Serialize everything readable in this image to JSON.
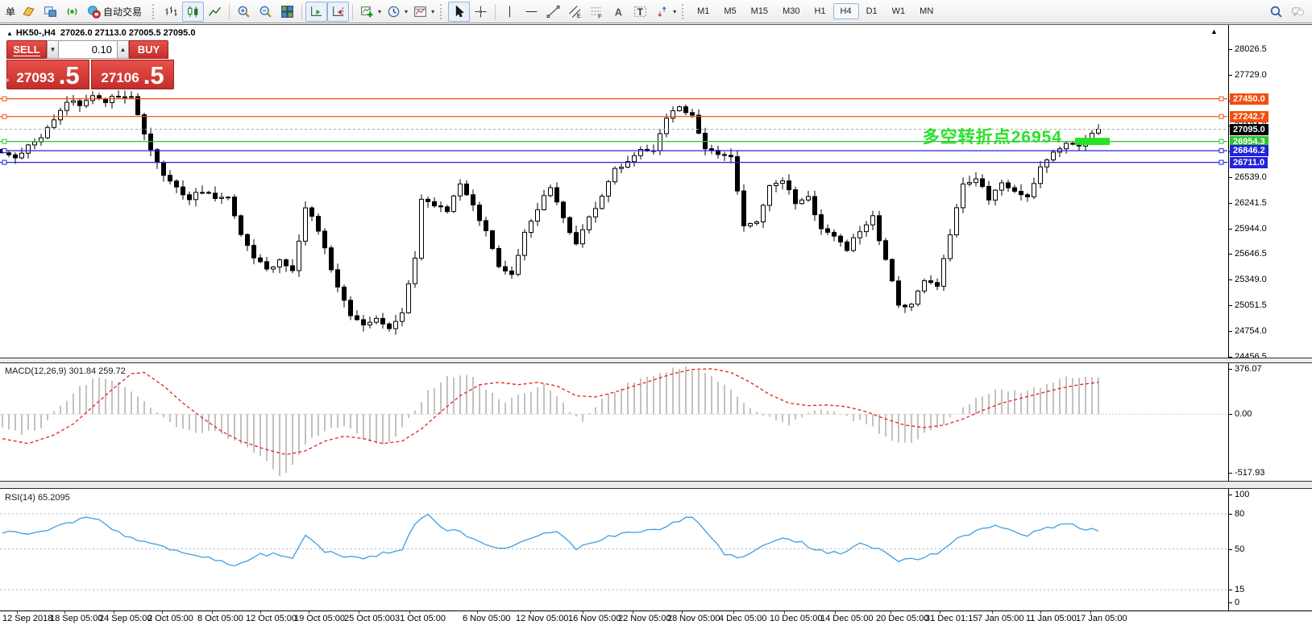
{
  "ui": {
    "toolbar": {
      "menu_clip": "单",
      "autotrade_label": "自动交易",
      "timeframes": [
        "M1",
        "M5",
        "M15",
        "M30",
        "H1",
        "H4",
        "D1",
        "W1",
        "MN"
      ],
      "active_timeframe": "H4",
      "items": [
        {
          "type": "text",
          "name": "menu-clip"
        },
        {
          "type": "icon",
          "name": "new-order-icon"
        },
        {
          "type": "icon",
          "name": "market-watch-icon"
        },
        {
          "type": "icon",
          "name": "signals-icon"
        },
        {
          "type": "icon-label",
          "name": "autotrade-button",
          "icon": "autotrade-icon"
        },
        {
          "type": "grip"
        },
        {
          "type": "icon",
          "name": "bars-chart-icon"
        },
        {
          "type": "icon",
          "name": "candles-chart-icon",
          "active": true
        },
        {
          "type": "icon",
          "name": "line-chart-icon"
        },
        {
          "type": "sep"
        },
        {
          "type": "icon",
          "name": "zoom-in-icon"
        },
        {
          "type": "icon",
          "name": "zoom-out-icon"
        },
        {
          "type": "icon",
          "name": "tile-windows-icon"
        },
        {
          "type": "sep"
        },
        {
          "type": "icon",
          "name": "auto-scroll-icon",
          "active": true
        },
        {
          "type": "icon",
          "name": "chart-shift-icon",
          "active": true
        },
        {
          "type": "sep"
        },
        {
          "type": "icon",
          "name": "indicators-icon",
          "dd": true
        },
        {
          "type": "icon",
          "name": "periods-icon",
          "dd": true
        },
        {
          "type": "icon",
          "name": "templates-icon",
          "dd": true
        },
        {
          "type": "grip"
        },
        {
          "type": "icon",
          "name": "cursor-icon",
          "active": true
        },
        {
          "type": "icon",
          "name": "crosshair-icon"
        },
        {
          "type": "sep"
        },
        {
          "type": "icon",
          "name": "vertical-line-icon"
        },
        {
          "type": "icon",
          "name": "horizontal-line-icon"
        },
        {
          "type": "icon",
          "name": "trend-line-icon"
        },
        {
          "type": "icon",
          "name": "channel-icon"
        },
        {
          "type": "icon",
          "name": "fibonacci-icon"
        },
        {
          "type": "icon",
          "name": "text-icon"
        },
        {
          "type": "icon",
          "name": "text-label-icon"
        },
        {
          "type": "icon",
          "name": "arrows-icon",
          "dd": true
        },
        {
          "type": "grip"
        },
        {
          "type": "timeframes"
        },
        {
          "type": "spacer"
        },
        {
          "type": "icon",
          "name": "search-icon"
        },
        {
          "type": "icon",
          "name": "chat-icon"
        }
      ]
    },
    "trade": {
      "sell": "SELL",
      "buy": "BUY",
      "volume": "0.10",
      "bid_int": "27093",
      "bid_frac": ".5",
      "ask_int": "27106",
      "ask_frac": ".5"
    }
  },
  "chart": {
    "symbol_period": "HK50-,H4",
    "ohlc": "27026.0 27113.0 27005.5 27095.0",
    "annotation_text": "多空转折点26954",
    "annotation_color": "#2be02b"
  },
  "chart_data": {
    "type": "candlestick",
    "symbol": "HK50-",
    "period": "H4",
    "price_axis": {
      "ticks": [
        28026.5,
        27729.0,
        27431.5,
        27134.0,
        26836.5,
        26539.0,
        26241.5,
        25944.0,
        25646.5,
        25349.0,
        25051.5,
        24754.0,
        24456.5
      ],
      "range": [
        24454,
        28147
      ]
    },
    "levels": [
      {
        "price": 27450.0,
        "label": "27450.0",
        "color": "#f14e10"
      },
      {
        "price": 27242.7,
        "label": "27242.7",
        "color": "#f14e10"
      },
      {
        "price": 26954.3,
        "label": "26954.3",
        "color": "#2cc42c"
      },
      {
        "price": 26846.2,
        "label": "26846.2",
        "color": "#2323dd"
      },
      {
        "price": 26711.0,
        "label": "26711.0",
        "color": "#2323dd"
      }
    ],
    "bid": {
      "price": 27095.0,
      "label": "27095.0",
      "line_color": "#ababab",
      "label_bg": "#000000"
    },
    "highlight_zone": {
      "price": 26954.3,
      "color": "#28e228"
    },
    "candle_count": 171,
    "candle_close_path": [
      [
        0,
        26850
      ],
      [
        2,
        26780
      ],
      [
        4,
        26900
      ],
      [
        6,
        26980
      ],
      [
        8,
        27220
      ],
      [
        10,
        27420
      ],
      [
        12,
        27380
      ],
      [
        14,
        27480
      ],
      [
        16,
        27430
      ],
      [
        18,
        27490
      ],
      [
        20,
        27460
      ],
      [
        22,
        27050
      ],
      [
        23,
        26880
      ],
      [
        25,
        26550
      ],
      [
        27,
        26420
      ],
      [
        29,
        26300
      ],
      [
        31,
        26380
      ],
      [
        33,
        26280
      ],
      [
        35,
        26320
      ],
      [
        37,
        25850
      ],
      [
        39,
        25600
      ],
      [
        41,
        25480
      ],
      [
        43,
        25560
      ],
      [
        45,
        25440
      ],
      [
        47,
        26180
      ],
      [
        48,
        26100
      ],
      [
        50,
        25700
      ],
      [
        52,
        25280
      ],
      [
        54,
        24920
      ],
      [
        56,
        24800
      ],
      [
        58,
        24880
      ],
      [
        60,
        24760
      ],
      [
        62,
        24980
      ],
      [
        64,
        25600
      ],
      [
        65,
        26280
      ],
      [
        67,
        26220
      ],
      [
        69,
        26130
      ],
      [
        71,
        26480
      ],
      [
        73,
        26200
      ],
      [
        75,
        25900
      ],
      [
        77,
        25480
      ],
      [
        79,
        25430
      ],
      [
        81,
        25880
      ],
      [
        83,
        26180
      ],
      [
        85,
        26420
      ],
      [
        87,
        26080
      ],
      [
        89,
        25760
      ],
      [
        91,
        26080
      ],
      [
        93,
        26320
      ],
      [
        95,
        26620
      ],
      [
        97,
        26700
      ],
      [
        99,
        26880
      ],
      [
        101,
        26820
      ],
      [
        103,
        27240
      ],
      [
        105,
        27360
      ],
      [
        107,
        27260
      ],
      [
        109,
        26880
      ],
      [
        111,
        26820
      ],
      [
        113,
        26780
      ],
      [
        115,
        25980
      ],
      [
        117,
        26020
      ],
      [
        119,
        26420
      ],
      [
        121,
        26480
      ],
      [
        123,
        26260
      ],
      [
        125,
        26300
      ],
      [
        127,
        25950
      ],
      [
        129,
        25880
      ],
      [
        131,
        25700
      ],
      [
        133,
        25920
      ],
      [
        135,
        26080
      ],
      [
        137,
        25560
      ],
      [
        139,
        25080
      ],
      [
        141,
        25040
      ],
      [
        143,
        25340
      ],
      [
        145,
        25280
      ],
      [
        147,
        25880
      ],
      [
        149,
        26440
      ],
      [
        151,
        26520
      ],
      [
        153,
        26300
      ],
      [
        155,
        26480
      ],
      [
        157,
        26380
      ],
      [
        159,
        26300
      ],
      [
        161,
        26680
      ],
      [
        163,
        26840
      ],
      [
        165,
        26950
      ],
      [
        167,
        26890
      ],
      [
        169,
        27060
      ],
      [
        170,
        27095
      ]
    ],
    "time_axis": [
      [
        3,
        "12 Sep 2018"
      ],
      [
        62,
        "18 Sep 05:00"
      ],
      [
        123,
        "24 Sep 05:00"
      ],
      [
        183,
        "2 Oct 05:00"
      ],
      [
        245,
        "8 Oct 05:00"
      ],
      [
        305,
        "12 Oct 05:00"
      ],
      [
        365,
        "19 Oct 05:00"
      ],
      [
        427,
        "25 Oct 05:00"
      ],
      [
        490,
        "31 Oct 05:00"
      ],
      [
        574,
        "6 Nov 05:00"
      ],
      [
        640,
        "12 Nov 05:00"
      ],
      [
        705,
        "16 Nov 05:00"
      ],
      [
        767,
        "22 Nov 05:00"
      ],
      [
        828,
        "28 Nov 05:00"
      ],
      [
        892,
        "4 Dec 05:00"
      ],
      [
        955,
        "10 Dec 05:00"
      ],
      [
        1018,
        "14 Dec 05:00"
      ],
      [
        1087,
        "20 Dec 05:00"
      ],
      [
        1148,
        "31 Dec 01:15"
      ],
      [
        1213,
        "7 Jan 05:00"
      ],
      [
        1273,
        "11 Jan 05:00"
      ],
      [
        1335,
        "17 Jan 05:00"
      ]
    ],
    "macd": {
      "label": "MACD(12,26,9) 301.84 259.72",
      "axis_labels": [
        "376.07",
        "0.00",
        "-517.93"
      ],
      "range": [
        -517.93,
        376.07
      ],
      "last_main": 301.84,
      "last_signal": 259.72,
      "hist_color": "#c2c2c2",
      "signal_color": "#e02222",
      "hist_path": [
        [
          0,
          -90
        ],
        [
          3,
          -160
        ],
        [
          6,
          -110
        ],
        [
          9,
          80
        ],
        [
          12,
          220
        ],
        [
          15,
          300
        ],
        [
          18,
          280
        ],
        [
          21,
          150
        ],
        [
          24,
          20
        ],
        [
          27,
          -90
        ],
        [
          30,
          -170
        ],
        [
          33,
          -140
        ],
        [
          36,
          -220
        ],
        [
          40,
          -330
        ],
        [
          43,
          -518
        ],
        [
          45,
          -430
        ],
        [
          47,
          -250
        ],
        [
          50,
          -130
        ],
        [
          53,
          -90
        ],
        [
          56,
          -200
        ],
        [
          59,
          -260
        ],
        [
          61,
          -170
        ],
        [
          63,
          -40
        ],
        [
          66,
          180
        ],
        [
          69,
          300
        ],
        [
          72,
          330
        ],
        [
          75,
          210
        ],
        [
          78,
          100
        ],
        [
          81,
          170
        ],
        [
          84,
          230
        ],
        [
          87,
          80
        ],
        [
          90,
          -60
        ],
        [
          93,
          120
        ],
        [
          96,
          220
        ],
        [
          99,
          290
        ],
        [
          102,
          340
        ],
        [
          105,
          376
        ],
        [
          107,
          370
        ],
        [
          110,
          310
        ],
        [
          113,
          190
        ],
        [
          116,
          60
        ],
        [
          119,
          -40
        ],
        [
          122,
          -90
        ],
        [
          125,
          10
        ],
        [
          128,
          40
        ],
        [
          131,
          -30
        ],
        [
          134,
          -80
        ],
        [
          137,
          -190
        ],
        [
          140,
          -240
        ],
        [
          143,
          -170
        ],
        [
          146,
          -70
        ],
        [
          149,
          60
        ],
        [
          152,
          150
        ],
        [
          155,
          210
        ],
        [
          158,
          170
        ],
        [
          161,
          230
        ],
        [
          164,
          280
        ],
        [
          167,
          310
        ],
        [
          170,
          302
        ]
      ],
      "signal_path": [
        [
          0,
          -200
        ],
        [
          4,
          -240
        ],
        [
          8,
          -170
        ],
        [
          11,
          -80
        ],
        [
          14,
          60
        ],
        [
          17,
          200
        ],
        [
          20,
          330
        ],
        [
          22,
          340
        ],
        [
          25,
          230
        ],
        [
          28,
          90
        ],
        [
          31,
          -30
        ],
        [
          34,
          -140
        ],
        [
          37,
          -220
        ],
        [
          41,
          -290
        ],
        [
          44,
          -330
        ],
        [
          47,
          -300
        ],
        [
          50,
          -220
        ],
        [
          53,
          -180
        ],
        [
          56,
          -200
        ],
        [
          59,
          -240
        ],
        [
          62,
          -220
        ],
        [
          65,
          -120
        ],
        [
          68,
          20
        ],
        [
          71,
          150
        ],
        [
          74,
          240
        ],
        [
          77,
          260
        ],
        [
          80,
          240
        ],
        [
          83,
          260
        ],
        [
          86,
          230
        ],
        [
          89,
          150
        ],
        [
          92,
          140
        ],
        [
          95,
          180
        ],
        [
          98,
          230
        ],
        [
          101,
          280
        ],
        [
          104,
          330
        ],
        [
          107,
          365
        ],
        [
          110,
          370
        ],
        [
          113,
          340
        ],
        [
          116,
          260
        ],
        [
          119,
          160
        ],
        [
          122,
          90
        ],
        [
          125,
          70
        ],
        [
          128,
          75
        ],
        [
          131,
          60
        ],
        [
          134,
          20
        ],
        [
          137,
          -40
        ],
        [
          140,
          -90
        ],
        [
          143,
          -110
        ],
        [
          146,
          -90
        ],
        [
          149,
          -40
        ],
        [
          152,
          30
        ],
        [
          155,
          90
        ],
        [
          158,
          130
        ],
        [
          161,
          170
        ],
        [
          164,
          210
        ],
        [
          167,
          240
        ],
        [
          170,
          260
        ]
      ]
    },
    "rsi": {
      "label": "RSI(14) 65.2095",
      "axis_labels": [
        "100",
        "80",
        "50",
        "15",
        "0"
      ],
      "levels": [
        80,
        50,
        15
      ],
      "range": [
        0,
        100
      ],
      "last": 65.2095,
      "line_color": "#3f9fe0",
      "path": [
        [
          0,
          65
        ],
        [
          4,
          62
        ],
        [
          8,
          68
        ],
        [
          13,
          78
        ],
        [
          15,
          74
        ],
        [
          19,
          60
        ],
        [
          23,
          55
        ],
        [
          27,
          48
        ],
        [
          31,
          44
        ],
        [
          34,
          40
        ],
        [
          36,
          34
        ],
        [
          39,
          44
        ],
        [
          42,
          46
        ],
        [
          45,
          43
        ],
        [
          47,
          62
        ],
        [
          50,
          48
        ],
        [
          53,
          44
        ],
        [
          56,
          42
        ],
        [
          59,
          46
        ],
        [
          62,
          50
        ],
        [
          64,
          72
        ],
        [
          66,
          80
        ],
        [
          68,
          68
        ],
        [
          71,
          64
        ],
        [
          74,
          56
        ],
        [
          77,
          50
        ],
        [
          80,
          54
        ],
        [
          83,
          62
        ],
        [
          86,
          64
        ],
        [
          89,
          50
        ],
        [
          92,
          56
        ],
        [
          95,
          62
        ],
        [
          98,
          64
        ],
        [
          101,
          66
        ],
        [
          104,
          72
        ],
        [
          107,
          78
        ],
        [
          110,
          60
        ],
        [
          112,
          45
        ],
        [
          115,
          42
        ],
        [
          118,
          52
        ],
        [
          121,
          60
        ],
        [
          124,
          55
        ],
        [
          127,
          48
        ],
        [
          130,
          46
        ],
        [
          133,
          55
        ],
        [
          136,
          50
        ],
        [
          139,
          40
        ],
        [
          142,
          42
        ],
        [
          145,
          46
        ],
        [
          148,
          58
        ],
        [
          151,
          66
        ],
        [
          154,
          70
        ],
        [
          157,
          64
        ],
        [
          159,
          62
        ],
        [
          162,
          68
        ],
        [
          165,
          72
        ],
        [
          167,
          68
        ],
        [
          170,
          65.2
        ]
      ]
    }
  }
}
